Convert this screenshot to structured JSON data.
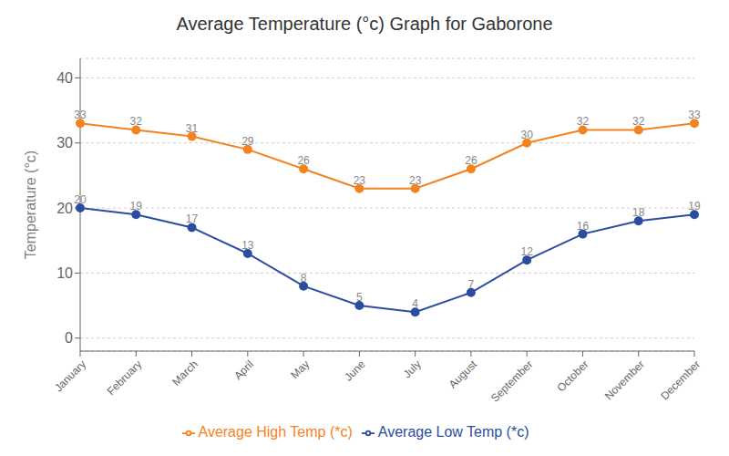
{
  "chart_data": {
    "type": "line",
    "title": "Average Temperature (°c) Graph for Gaborone",
    "ylabel": "Temperature (°c)",
    "categories": [
      "January",
      "February",
      "March",
      "April",
      "May",
      "June",
      "July",
      "August",
      "September",
      "October",
      "November",
      "December"
    ],
    "series": [
      {
        "name": "Average High Temp (*c)",
        "color": "#F4831F",
        "values": [
          33,
          32,
          31,
          29,
          26,
          23,
          23,
          26,
          30,
          32,
          32,
          33
        ]
      },
      {
        "name": "Average Low Temp (*c)",
        "color": "#2B4DA0",
        "values": [
          20,
          19,
          17,
          13,
          8,
          5,
          4,
          7,
          12,
          16,
          18,
          19
        ]
      }
    ],
    "ylim": [
      -2,
      43
    ],
    "yticks": [
      0,
      10,
      20,
      30,
      40
    ],
    "grid": true,
    "legend": "bottom",
    "data_labels": true,
    "marker": "circle"
  }
}
